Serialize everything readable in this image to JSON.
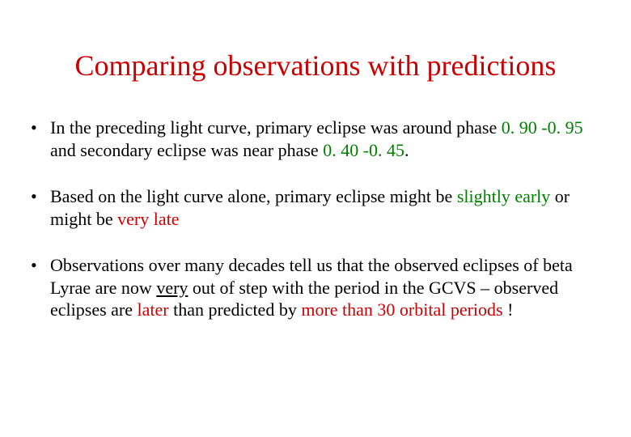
{
  "title": "Comparing observations with predictions",
  "colors": {
    "title": "#cc0000",
    "text": "#000000",
    "green": "#008000",
    "red": "#cc0000",
    "background": "#ffffff"
  },
  "typography": {
    "title_fontsize": 36,
    "body_fontsize": 22,
    "font_family": "Times New Roman"
  },
  "bullets": [
    {
      "pre": "In the preceding light curve, primary eclipse was around phase ",
      "g1": "0. 90 -0. 95",
      "mid1": " and secondary eclipse was near phase ",
      "g2": "0. 40 -0. 45",
      "post": "."
    },
    {
      "pre": "Based on the light curve alone, primary eclipse might be ",
      "g1": "slightly early",
      "mid1": " or might be ",
      "r1": "very late"
    },
    {
      "pre": "Observations over many decades tell us that the observed eclipses of beta Lyrae are now ",
      "u1": "very",
      "mid1": " out of step with the period in the GCVS – observed eclipses are ",
      "r1": "later",
      "mid2": " than predicted by ",
      "r2": "more than 30 orbital periods",
      "post": " !"
    }
  ]
}
